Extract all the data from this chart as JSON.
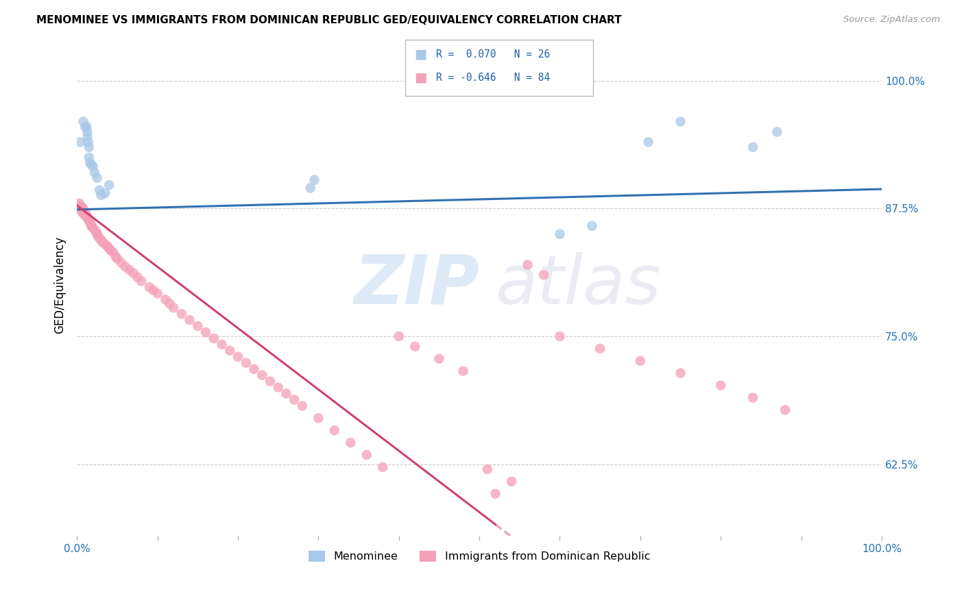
{
  "title": "MENOMINEE VS IMMIGRANTS FROM DOMINICAN REPUBLIC GED/EQUIVALENCY CORRELATION CHART",
  "source": "Source: ZipAtlas.com",
  "ylabel": "GED/Equivalency",
  "ytick_labels": [
    "100.0%",
    "87.5%",
    "75.0%",
    "62.5%"
  ],
  "ytick_values": [
    1.0,
    0.875,
    0.75,
    0.625
  ],
  "xlim": [
    0.0,
    1.0
  ],
  "ylim": [
    0.555,
    1.045
  ],
  "blue_color": "#a8c8e8",
  "pink_color": "#f4a0b8",
  "line_blue": "#3070b0",
  "line_pink": "#d04070",
  "menominee_x": [
    0.004,
    0.008,
    0.01,
    0.012,
    0.013,
    0.013,
    0.014,
    0.015,
    0.015,
    0.016,
    0.018,
    0.02,
    0.022,
    0.025,
    0.028,
    0.03,
    0.035,
    0.04,
    0.29,
    0.295,
    0.6,
    0.64,
    0.71,
    0.75,
    0.84,
    0.87
  ],
  "menominee_y": [
    0.94,
    0.96,
    0.955,
    0.955,
    0.95,
    0.945,
    0.94,
    0.935,
    0.925,
    0.92,
    0.918,
    0.916,
    0.91,
    0.905,
    0.893,
    0.888,
    0.89,
    0.898,
    0.895,
    0.903,
    0.85,
    0.858,
    0.94,
    0.96,
    0.935,
    0.95
  ],
  "dr_x": [
    0.003,
    0.004,
    0.005,
    0.006,
    0.006,
    0.007,
    0.008,
    0.008,
    0.009,
    0.01,
    0.01,
    0.011,
    0.012,
    0.013,
    0.014,
    0.015,
    0.016,
    0.017,
    0.018,
    0.019,
    0.02,
    0.022,
    0.024,
    0.025,
    0.026,
    0.028,
    0.03,
    0.032,
    0.035,
    0.038,
    0.04,
    0.042,
    0.045,
    0.048,
    0.05,
    0.055,
    0.06,
    0.065,
    0.07,
    0.075,
    0.08,
    0.09,
    0.095,
    0.1,
    0.11,
    0.115,
    0.12,
    0.13,
    0.14,
    0.15,
    0.16,
    0.17,
    0.18,
    0.19,
    0.2,
    0.21,
    0.22,
    0.23,
    0.24,
    0.25,
    0.26,
    0.27,
    0.28,
    0.3,
    0.32,
    0.34,
    0.36,
    0.38,
    0.4,
    0.42,
    0.45,
    0.48,
    0.51,
    0.54,
    0.56,
    0.58,
    0.6,
    0.65,
    0.7,
    0.75,
    0.8,
    0.84,
    0.88,
    0.52
  ],
  "dr_y": [
    0.88,
    0.878,
    0.875,
    0.876,
    0.872,
    0.876,
    0.874,
    0.87,
    0.872,
    0.87,
    0.868,
    0.87,
    0.868,
    0.866,
    0.865,
    0.863,
    0.862,
    0.86,
    0.858,
    0.857,
    0.856,
    0.854,
    0.852,
    0.85,
    0.848,
    0.846,
    0.844,
    0.842,
    0.84,
    0.838,
    0.836,
    0.834,
    0.832,
    0.828,
    0.826,
    0.822,
    0.818,
    0.815,
    0.812,
    0.808,
    0.804,
    0.798,
    0.795,
    0.792,
    0.786,
    0.782,
    0.778,
    0.772,
    0.766,
    0.76,
    0.754,
    0.748,
    0.742,
    0.736,
    0.73,
    0.724,
    0.718,
    0.712,
    0.706,
    0.7,
    0.694,
    0.688,
    0.682,
    0.67,
    0.658,
    0.646,
    0.634,
    0.622,
    0.75,
    0.74,
    0.728,
    0.716,
    0.62,
    0.608,
    0.82,
    0.81,
    0.75,
    0.738,
    0.726,
    0.714,
    0.702,
    0.69,
    0.678,
    0.596
  ]
}
